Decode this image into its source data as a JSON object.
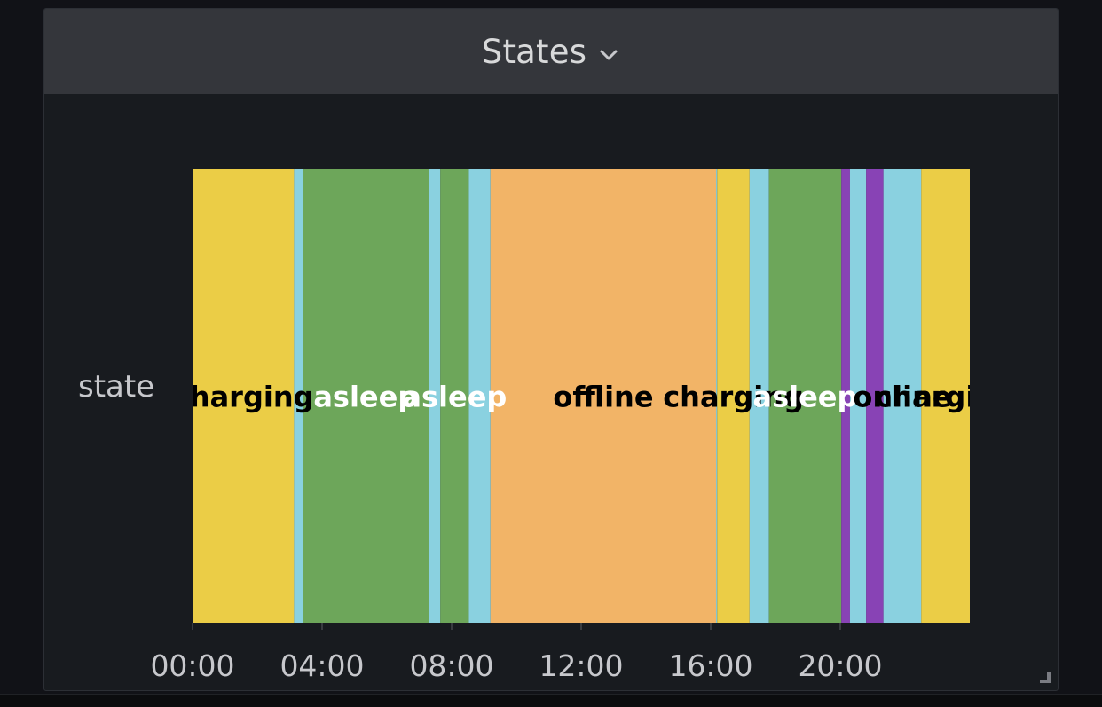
{
  "panel": {
    "title": "States"
  },
  "icons": {
    "title_menu": "chevron-down-icon",
    "resize": "resize-handle-icon"
  },
  "colors": {
    "background": "#111217",
    "panel": "#181b1f",
    "header": "#34363b",
    "axis_text": "#c7c8cc"
  },
  "chart_data": {
    "type": "state-timeline",
    "row_label": "state",
    "x_range": [
      "00:00",
      "24:00"
    ],
    "x_ticks": [
      "00:00",
      "04:00",
      "08:00",
      "12:00",
      "16:00",
      "20:00"
    ],
    "state_colors": {
      "charging": "#ebcd46",
      "online": "#8ad1e0",
      "asleep": "#6da65a",
      "offline": "#f2b467",
      "driving": "#8843b5"
    },
    "segments": [
      {
        "state": "charging",
        "start": "00:00",
        "end": "03:08",
        "label": "charging",
        "label_color": "#000000"
      },
      {
        "state": "online",
        "start": "03:08",
        "end": "03:24"
      },
      {
        "state": "asleep",
        "start": "03:24",
        "end": "07:18",
        "label": "asleep",
        "label_color": "#ffffff"
      },
      {
        "state": "online",
        "start": "07:18",
        "end": "07:39"
      },
      {
        "state": "asleep",
        "start": "07:39",
        "end": "08:32",
        "label": "asleep",
        "label_color": "#ffffff"
      },
      {
        "state": "online",
        "start": "08:32",
        "end": "09:12"
      },
      {
        "state": "offline",
        "start": "09:12",
        "end": "16:10",
        "label": "offline",
        "label_color": "#000000"
      },
      {
        "state": "online",
        "start": "16:10",
        "end": "16:12"
      },
      {
        "state": "charging",
        "start": "16:12",
        "end": "17:12",
        "label": "charging",
        "label_color": "#000000"
      },
      {
        "state": "online",
        "start": "17:12",
        "end": "17:48"
      },
      {
        "state": "asleep",
        "start": "17:48",
        "end": "20:02",
        "label": "asleep",
        "label_color": "#ffffff"
      },
      {
        "state": "driving",
        "start": "20:02",
        "end": "20:18"
      },
      {
        "state": "online",
        "start": "20:18",
        "end": "20:48"
      },
      {
        "state": "driving",
        "start": "20:48",
        "end": "21:20"
      },
      {
        "state": "online",
        "start": "21:20",
        "end": "22:30",
        "label": "online",
        "label_color": "#000000"
      },
      {
        "state": "charging",
        "start": "22:30",
        "end": "24:00",
        "label": "charging",
        "label_color": "#000000"
      }
    ]
  }
}
